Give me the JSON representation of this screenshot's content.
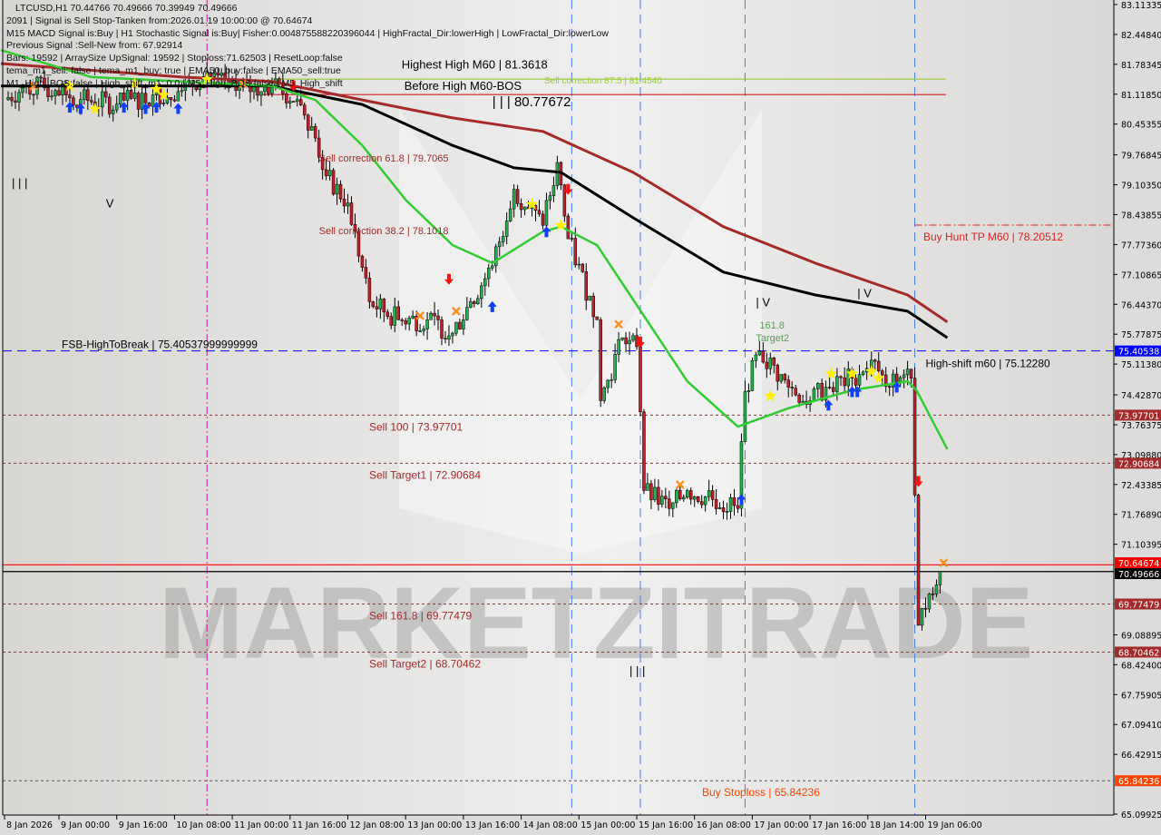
{
  "info_panel": {
    "lines": [
      "LTCUSD,H1  70.44766 70.49666 70.39949 70.49666",
      "2091 | Signal is Sell Stop-Tanken from:2026.01.19 10:00:00 @ 70.64674",
      "M15 MACD Signal is:Buy | H1 Stochastic Signal is:Buy| Fisher:0.004875588220396044 | HighFractal_Dir:lowerHigh | LowFractal_Dir:lowerLow",
      "Previous Signal :Sell-New from: 67.92914",
      "Bars: 19592 | ArraySize UpSignal: 19592 | Stoploss:71.62503 | ResetLoop:false",
      "tema_m1_sell: false | tema_m1_buy: true | EMA50_buy:false | EMA50_sell:true",
      "M1_High_BOS:false | High_shift_m1: 0.0 | M5_High_BOS:false | M5_High_shift"
    ]
  },
  "watermark": "MARKETZITRADE",
  "colors": {
    "background": "#dcdcdc",
    "bull_candle": "#22b14c",
    "bear_candle": "#c0202a",
    "ema_fast": "#33cc33",
    "ema_mid": "#000000",
    "ema_slow": "#a52a2a",
    "sell_level": "#a52a2a",
    "high_break": "#0000ff",
    "buy_stoploss": "#ff4500",
    "ask_line": "#ff0000",
    "bid_line": "#000000"
  },
  "chart_data": {
    "type": "candlestick",
    "symbol": "LTCUSD",
    "timeframe": "H1",
    "ylim": [
      65.09925,
      83.11335
    ],
    "y_ticks": [
      "83.11335",
      "82.44840",
      "81.78345",
      "81.11850",
      "80.45355",
      "79.76845",
      "79.10350",
      "78.43855",
      "77.77360",
      "77.10865",
      "76.44370",
      "75.77875",
      "75.11380",
      "74.42870",
      "73.76375",
      "73.09880",
      "72.43385",
      "71.76890",
      "71.10395",
      "69.08895",
      "68.42400",
      "67.75905",
      "67.09410",
      "66.42915",
      "65.09925"
    ],
    "x_ticks": [
      "8 Jan 2026",
      "9 Jan 00:00",
      "9 Jan 16:00",
      "10 Jan 08:00",
      "11 Jan 00:00",
      "11 Jan 16:00",
      "12 Jan 08:00",
      "13 Jan 00:00",
      "13 Jan 16:00",
      "14 Jan 08:00",
      "15 Jan 00:00",
      "15 Jan 16:00",
      "16 Jan 08:00",
      "17 Jan 00:00",
      "17 Jan 16:00",
      "18 Jan 14:00",
      "19 Jan 06:00"
    ],
    "close": [
      [
        "2026-01-08 09:00",
        81.0
      ],
      [
        "2026-01-08 15:00",
        81.3
      ],
      [
        "2026-01-08 23:00",
        81.2
      ],
      [
        "2026-01-09 06:00",
        81.0
      ],
      [
        "2026-01-09 16:00",
        80.9
      ],
      [
        "2026-01-10 02:00",
        81.1
      ],
      [
        "2026-01-10 10:00",
        81.2
      ],
      [
        "2026-01-10 17:00",
        81.6
      ],
      [
        "2026-01-11 01:00",
        81.2
      ],
      [
        "2026-01-11 11:00",
        81.3
      ],
      [
        "2026-01-11 18:00",
        81.0
      ],
      [
        "2026-01-11 22:00",
        80.4
      ],
      [
        "2026-01-12 02:00",
        79.3
      ],
      [
        "2026-01-12 08:00",
        78.7
      ],
      [
        "2026-01-12 14:00",
        76.5
      ],
      [
        "2026-01-12 22:00",
        76.1
      ],
      [
        "2026-01-13 06:00",
        76.1
      ],
      [
        "2026-01-13 13:00",
        75.8
      ],
      [
        "2026-01-13 18:00",
        76.5
      ],
      [
        "2026-01-14 00:00",
        77.3
      ],
      [
        "2026-01-14 06:00",
        79.0
      ],
      [
        "2026-01-14 14:00",
        78.2
      ],
      [
        "2026-01-14 18:00",
        79.6
      ],
      [
        "2026-01-14 21:00",
        77.9
      ],
      [
        "2026-01-15 05:00",
        76.1
      ],
      [
        "2026-01-15 06:00",
        74.3
      ],
      [
        "2026-01-15 12:00",
        75.7
      ],
      [
        "2026-01-15 16:00",
        75.5
      ],
      [
        "2026-01-15 18:00",
        72.3
      ],
      [
        "2026-01-16 01:00",
        71.9
      ],
      [
        "2026-01-16 06:00",
        72.3
      ],
      [
        "2026-01-16 13:00",
        72.1
      ],
      [
        "2026-01-16 20:00",
        71.9
      ],
      [
        "2026-01-16 22:00",
        74.5
      ],
      [
        "2026-01-17 02:00",
        75.4
      ],
      [
        "2026-01-17 10:00",
        74.6
      ],
      [
        "2026-01-17 16:00",
        74.3
      ],
      [
        "2026-01-17 22:00",
        74.6
      ],
      [
        "2026-01-18 08:00",
        74.8
      ],
      [
        "2026-01-18 15:00",
        75.2
      ],
      [
        "2026-01-18 20:00",
        74.6
      ],
      [
        "2026-01-19 01:00",
        75.0
      ],
      [
        "2026-01-19 02:00",
        74.8
      ],
      [
        "2026-01-19 03:00",
        72.2
      ],
      [
        "2026-01-19 04:00",
        69.3
      ],
      [
        "2026-01-19 07:00",
        70.0
      ],
      [
        "2026-01-19 09:00",
        70.2
      ],
      [
        "2026-01-19 10:00",
        70.5
      ]
    ],
    "moving_averages": [
      {
        "key": "ema_slow",
        "points": [
          [
            "2026-01-08 08:00",
            81.8
          ],
          [
            "2026-01-10 10:00",
            81.5
          ],
          [
            "2026-01-11 11:00",
            81.4
          ],
          [
            "2026-01-12 12:00",
            80.99
          ],
          [
            "2026-01-13 13:00",
            80.59
          ],
          [
            "2026-01-14 14:00",
            80.29
          ],
          [
            "2026-01-15 15:00",
            79.38
          ],
          [
            "2026-01-16 16:00",
            78.17
          ],
          [
            "2026-01-17 18:00",
            77.36
          ],
          [
            "2026-01-19 01:00",
            76.65
          ],
          [
            "2026-01-19 12:00",
            76.05
          ]
        ]
      },
      {
        "key": "ema_mid",
        "points": [
          [
            "2026-01-08 08:00",
            81.3
          ],
          [
            "2026-01-11 11:00",
            81.3
          ],
          [
            "2026-01-12 12:00",
            80.89
          ],
          [
            "2026-01-13 13:00",
            79.98
          ],
          [
            "2026-01-14 06:00",
            79.48
          ],
          [
            "2026-01-14 19:00",
            79.38
          ],
          [
            "2026-01-15 15:00",
            78.37
          ],
          [
            "2026-01-16 16:00",
            77.16
          ],
          [
            "2026-01-17 18:00",
            76.65
          ],
          [
            "2026-01-19 01:00",
            76.29
          ],
          [
            "2026-01-19 12:00",
            75.7
          ]
        ]
      },
      {
        "key": "ema_fast",
        "points": [
          [
            "2026-01-08 08:00",
            82.1
          ],
          [
            "2026-01-09 09:00",
            81.5
          ],
          [
            "2026-01-10 10:00",
            81.4
          ],
          [
            "2026-01-11 11:00",
            81.3
          ],
          [
            "2026-01-11 23:00",
            80.99
          ],
          [
            "2026-01-12 12:00",
            79.98
          ],
          [
            "2026-01-13 00:00",
            78.77
          ],
          [
            "2026-01-13 13:00",
            77.76
          ],
          [
            "2026-01-14 00:00",
            77.36
          ],
          [
            "2026-01-14 14:00",
            78.06
          ],
          [
            "2026-01-14 19:00",
            78.17
          ],
          [
            "2026-01-15 05:00",
            77.76
          ],
          [
            "2026-01-15 15:00",
            76.55
          ],
          [
            "2026-01-16 06:00",
            74.73
          ],
          [
            "2026-01-16 20:00",
            73.72
          ],
          [
            "2026-01-17 10:00",
            74.13
          ],
          [
            "2026-01-18 08:00",
            74.53
          ],
          [
            "2026-01-19 01:00",
            74.73
          ],
          [
            "2026-01-19 03:30",
            74.53
          ],
          [
            "2026-01-19 12:00",
            73.22
          ]
        ]
      }
    ],
    "levels": [
      {
        "price": 81.454,
        "label": "Sell correction 87.5 | 81.4540",
        "color": "#9acd32",
        "style": "solid",
        "from": "2026-01-11 11:00"
      },
      {
        "price": 81.11,
        "label": "",
        "color": "#d02020",
        "style": "solid",
        "from": "2026-01-11 08:00"
      },
      {
        "price": 78.20512,
        "label": "Buy Hunt TP M60 | 78.20512",
        "color": "#e02020",
        "style": "dashdot",
        "from": "2026-01-19 03:00"
      },
      {
        "price": 75.40538,
        "label": "FSB-HighToBreak | 75.40537999999999",
        "color": "#0000ff",
        "style": "dashed",
        "axis_tag": "75.40538",
        "tag_color": "#0000ff"
      },
      {
        "price": 73.97701,
        "label": "Sell 100 | 73.97701",
        "color": "#a52a2a",
        "style": "dotted",
        "axis_tag": "73.97701",
        "tag_color": "#a52a2a"
      },
      {
        "price": 72.90684,
        "label": "Sell Target1 | 72.90684",
        "color": "#a52a2a",
        "style": "dotted",
        "axis_tag": "72.90684",
        "tag_color": "#a52a2a"
      },
      {
        "price": 70.64674,
        "label": "",
        "color": "#ff0000",
        "style": "solid",
        "axis_tag": "70.64674",
        "tag_color": "#ff0000"
      },
      {
        "price": 70.49666,
        "label": "",
        "color": "#000000",
        "style": "solid",
        "axis_tag": "70.49666",
        "tag_color": "#000000"
      },
      {
        "price": 69.77479,
        "label": "Sell 161.8 | 69.77479",
        "color": "#a52a2a",
        "style": "dotted",
        "axis_tag": "69.77479",
        "tag_color": "#a52a2a"
      },
      {
        "price": 68.70462,
        "label": "Sell Target2 | 68.70462",
        "color": "#a52a2a",
        "style": "dotted",
        "axis_tag": "68.70462",
        "tag_color": "#a52a2a"
      },
      {
        "price": 65.84236,
        "label": "Buy Stoploss | 65.84236",
        "color": "#555555",
        "style": "dotted",
        "axis_tag": "65.84236",
        "tag_color": "#ff4500"
      }
    ],
    "annotations": [
      {
        "text": "Highest High    M60 | 81.3618",
        "time": "2026-01-11 18:00",
        "price": 81.55,
        "color": "#000000",
        "size": 13
      },
      {
        "text": "Before High    M60-BOS",
        "time": "2026-01-11 20:00",
        "price": 81.15,
        "color": "#000000",
        "size": 13
      },
      {
        "text": "| | | 80.77672",
        "time": "2026-01-14 00:00",
        "price": 80.85,
        "color": "#000000",
        "size": 15
      },
      {
        "text": "Sell correction 61.8 | 79.7065",
        "time": "2026-01-12 00:00",
        "price": 79.62,
        "color": "#a52a2a",
        "size": 11
      },
      {
        "text": "Sell correction 38.2 | 78.1018",
        "time": "2026-01-12 00:00",
        "price": 78.0,
        "color": "#a52a2a",
        "size": 11
      },
      {
        "text": "High-shift m60 | 75.12280",
        "time": "2026-01-19 06:00",
        "price": 75.05,
        "color": "#000000",
        "size": 12
      },
      {
        "text": "161.8",
        "time": "2026-01-17 02:00",
        "price": 75.9,
        "color": "#5a9a5a",
        "size": 11
      },
      {
        "text": "Target2",
        "time": "2026-01-17 01:00",
        "price": 75.62,
        "color": "#5a9a5a",
        "size": 11
      },
      {
        "text": "| | |",
        "time": "2026-01-08 11:00",
        "price": 79.05,
        "color": "#000000",
        "size": 13
      },
      {
        "text": "V",
        "time": "2026-01-09 13:00",
        "price": 78.6,
        "color": "#000000",
        "size": 13
      },
      {
        "text": "| V",
        "time": "2026-01-17 01:00",
        "price": 76.4,
        "color": "#000000",
        "size": 13
      },
      {
        "text": "| V",
        "time": "2026-01-18 10:00",
        "price": 76.6,
        "color": "#000000",
        "size": 13
      },
      {
        "text": "| | |",
        "time": "2026-01-15 14:00",
        "price": 68.2,
        "color": "#000000",
        "size": 13
      }
    ],
    "markers": [
      {
        "type": "buy-arrow",
        "time": "2026-01-09 03:00",
        "price": 80.83
      },
      {
        "type": "buy-arrow",
        "time": "2026-01-09 06:00",
        "price": 80.8
      },
      {
        "type": "buy-arrow",
        "time": "2026-01-09 18:00",
        "price": 80.83
      },
      {
        "type": "buy-arrow",
        "time": "2026-01-10 00:00",
        "price": 80.8
      },
      {
        "type": "buy-arrow",
        "time": "2026-01-10 03:00",
        "price": 80.83
      },
      {
        "type": "buy-arrow",
        "time": "2026-01-10 09:00",
        "price": 80.8
      },
      {
        "type": "buy-arrow",
        "time": "2026-01-14 00:00",
        "price": 76.39
      },
      {
        "type": "buy-arrow",
        "time": "2026-01-14 15:00",
        "price": 78.06
      },
      {
        "type": "buy-arrow",
        "time": "2026-01-16 21:00",
        "price": 72.1
      },
      {
        "type": "buy-arrow",
        "time": "2026-01-17 23:00",
        "price": 74.2
      },
      {
        "type": "buy-arrow",
        "time": "2026-01-18 08:00",
        "price": 74.5
      },
      {
        "type": "buy-arrow",
        "time": "2026-01-18 10:00",
        "price": 74.5
      },
      {
        "type": "buy-arrow",
        "time": "2026-01-18 22:00",
        "price": 74.6
      },
      {
        "type": "sell-arrow",
        "time": "2026-01-11 17:00",
        "price": 81.3
      },
      {
        "type": "sell-arrow",
        "time": "2026-01-13 12:00",
        "price": 77.0
      },
      {
        "type": "sell-arrow",
        "time": "2026-01-14 21:00",
        "price": 79.0
      },
      {
        "type": "sell-arrow",
        "time": "2026-01-15 17:00",
        "price": 75.6
      },
      {
        "type": "sell-arrow",
        "time": "2026-01-19 04:00",
        "price": 72.5
      },
      {
        "type": "star",
        "time": "2026-01-09 03:00",
        "price": 81.3
      },
      {
        "type": "star",
        "time": "2026-01-09 10:00",
        "price": 80.79
      },
      {
        "type": "star",
        "time": "2026-01-09 21:00",
        "price": 81.35
      },
      {
        "type": "star",
        "time": "2026-01-10 03:00",
        "price": 81.23
      },
      {
        "type": "star",
        "time": "2026-01-10 05:00",
        "price": 81.1
      },
      {
        "type": "star",
        "time": "2026-01-10 17:00",
        "price": 81.45
      },
      {
        "type": "star",
        "time": "2026-01-14 11:00",
        "price": 78.67
      },
      {
        "type": "star",
        "time": "2026-01-14 19:00",
        "price": 78.2
      },
      {
        "type": "star",
        "time": "2026-01-17 05:00",
        "price": 74.4
      },
      {
        "type": "star",
        "time": "2026-01-18 00:00",
        "price": 74.9
      },
      {
        "type": "star",
        "time": "2026-01-18 08:00",
        "price": 74.9
      },
      {
        "type": "star",
        "time": "2026-01-18 15:00",
        "price": 74.95
      },
      {
        "type": "star",
        "time": "2026-01-18 17:00",
        "price": 74.8
      },
      {
        "type": "cross",
        "time": "2026-01-08 17:00",
        "price": 81.3
      },
      {
        "type": "cross",
        "time": "2026-01-11 03:00",
        "price": 81.35
      },
      {
        "type": "cross",
        "time": "2026-01-13 04:00",
        "price": 76.19
      },
      {
        "type": "cross",
        "time": "2026-01-13 14:00",
        "price": 76.29
      },
      {
        "type": "cross",
        "time": "2026-01-15 11:00",
        "price": 76.0
      },
      {
        "type": "cross",
        "time": "2026-01-16 04:00",
        "price": 72.43
      },
      {
        "type": "cross",
        "time": "2026-01-19 11:00",
        "price": 70.69
      }
    ],
    "vertical_lines": [
      {
        "time": "2026-01-10 17:00",
        "color": "#c0208a",
        "style": "dashdot"
      },
      {
        "time": "2026-01-14 22:00",
        "color": "#4a7fe0",
        "style": "dashed"
      },
      {
        "time": "2026-01-15 17:00",
        "color": "#4a7fe0",
        "style": "dashed"
      },
      {
        "time": "2026-01-16 22:00",
        "color": "#4a7fe0",
        "style": "dashed"
      },
      {
        "time": "2026-01-19 03:00",
        "color": "#4a7fe0",
        "style": "dashed"
      }
    ]
  }
}
